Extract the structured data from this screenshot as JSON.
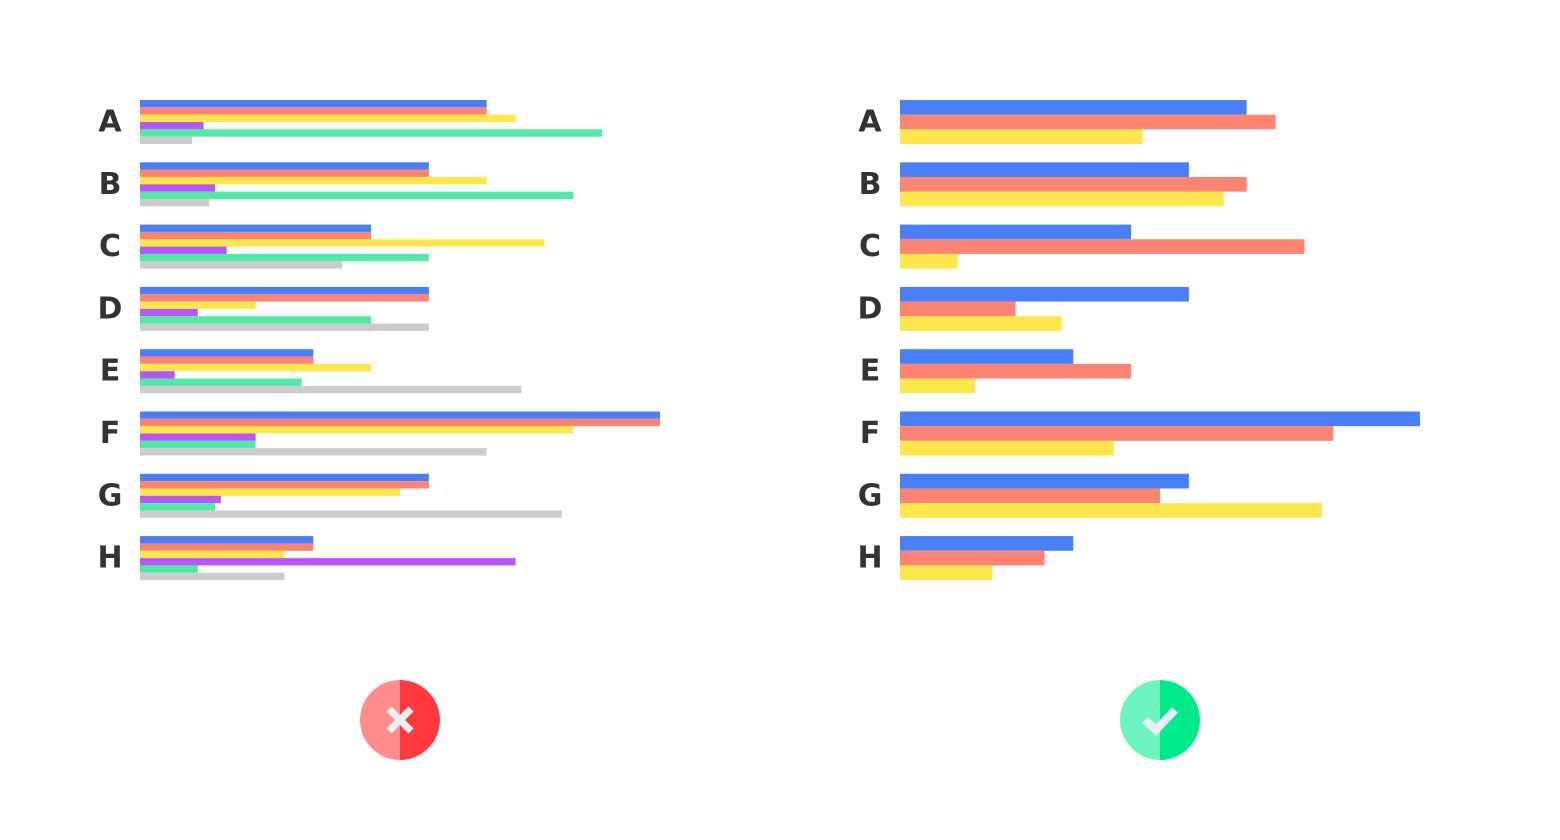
{
  "colors": {
    "blue": "#4a7ffa",
    "salmon": "#fd8472",
    "yellow": "#fde74c",
    "purple": "#b657f7",
    "green": "#52e8a6",
    "gray": "#cccccc",
    "bad_light": "#ff8c8a",
    "bad_dark": "#ff3b3f",
    "good_light": "#6ef5be",
    "good_dark": "#00ea89",
    "mark_light": "#e8f0fa"
  },
  "chart_data": [
    {
      "type": "bar",
      "orientation": "horizontal",
      "categories": [
        "A",
        "B",
        "C",
        "D",
        "E",
        "F",
        "G",
        "H"
      ],
      "xlim": [
        0,
        90
      ],
      "grid": false,
      "series": [
        {
          "color": "blue",
          "values": [
            60,
            50,
            40,
            50,
            30,
            90,
            50,
            30
          ]
        },
        {
          "color": "salmon",
          "values": [
            60,
            50,
            40,
            50,
            30,
            90,
            50,
            30
          ]
        },
        {
          "color": "yellow",
          "values": [
            65,
            60,
            70,
            20,
            40,
            75,
            45,
            25
          ]
        },
        {
          "color": "purple",
          "values": [
            11,
            13,
            15,
            10,
            6,
            20,
            14,
            65
          ]
        },
        {
          "color": "green",
          "values": [
            80,
            75,
            50,
            40,
            28,
            20,
            13,
            10
          ]
        },
        {
          "color": "gray",
          "values": [
            9,
            12,
            35,
            50,
            66,
            60,
            73,
            25
          ]
        }
      ],
      "verdict_icon": "cross-icon"
    },
    {
      "type": "bar",
      "orientation": "horizontal",
      "categories": [
        "A",
        "B",
        "C",
        "D",
        "E",
        "F",
        "G",
        "H"
      ],
      "xlim": [
        0,
        90
      ],
      "grid": false,
      "series": [
        {
          "color": "blue",
          "values": [
            60,
            50,
            40,
            50,
            30,
            90,
            50,
            30
          ]
        },
        {
          "color": "salmon",
          "values": [
            65,
            60,
            70,
            20,
            40,
            75,
            45,
            25
          ]
        },
        {
          "color": "yellow",
          "values": [
            42,
            56,
            10,
            28,
            13,
            37,
            73,
            16
          ]
        }
      ],
      "verdict_icon": "check-icon"
    }
  ]
}
